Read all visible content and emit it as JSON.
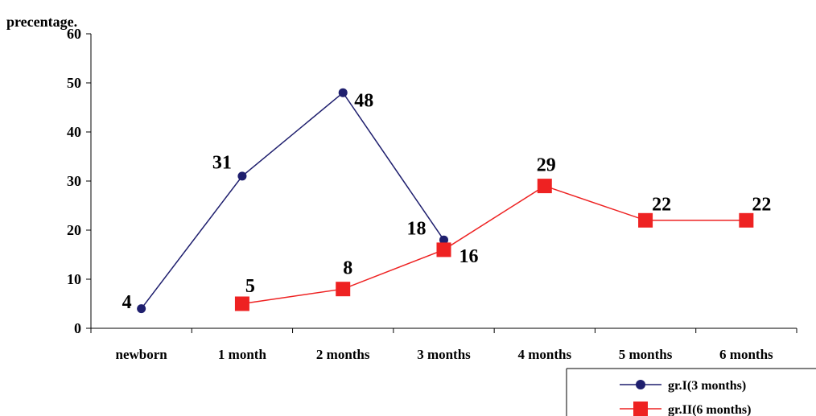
{
  "chart_data": {
    "type": "line",
    "title": "",
    "ylabel": "precentage.",
    "xlabel": "",
    "ylim": [
      0,
      60
    ],
    "yticks": [
      0,
      10,
      20,
      30,
      40,
      50,
      60
    ],
    "categories": [
      "newborn",
      "1 month",
      "2 months",
      "3 months",
      "4 months",
      "5 months",
      "6 months"
    ],
    "grid": false,
    "legend_position": "bottom-right",
    "series": [
      {
        "name": "gr.I(3 months)",
        "color": "#1f1f6e",
        "marker": "circle",
        "values": [
          4,
          31,
          48,
          18,
          null,
          null,
          null
        ],
        "labels": [
          "4",
          "31",
          "48",
          "18",
          null,
          null,
          null
        ]
      },
      {
        "name": "gr.II(6 months)",
        "color": "#ee2222",
        "marker": "square",
        "values": [
          null,
          5,
          8,
          16,
          29,
          22,
          22
        ],
        "labels": [
          null,
          "5",
          "8",
          "16",
          "29",
          "22",
          "22"
        ]
      }
    ]
  }
}
